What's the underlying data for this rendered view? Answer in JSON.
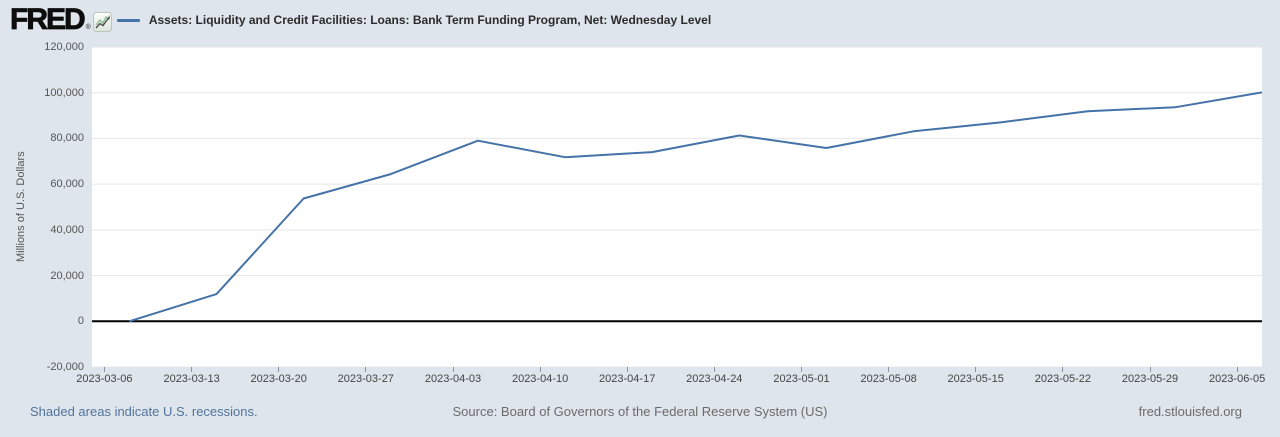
{
  "header": {
    "logo_text": "FRED",
    "registered_mark": "®",
    "series_title": "Assets: Liquidity and Credit Facilities: Loans: Bank Term Funding Program, Net: Wednesday Level"
  },
  "colors": {
    "page_background": "#dfe5ec",
    "plot_background": "#ffffff",
    "line": "#4572a7",
    "zero_line": "#000000",
    "gridline": "#e6e6e6",
    "link": "#51749b",
    "muted_text": "#6b6b6b",
    "axis_text": "#555555"
  },
  "footer": {
    "recession_note": "Shaded areas indicate U.S. recessions.",
    "source": "Source: Board of Governors of the Federal Reserve System (US)",
    "site": "fred.stlouisfed.org"
  },
  "chart_data": {
    "type": "line",
    "title": "Assets: Liquidity and Credit Facilities: Loans: Bank Term Funding Program, Net: Wednesday Level",
    "xlabel": "",
    "ylabel": "Millions of U.S. Dollars",
    "ylim": [
      -20000,
      120000
    ],
    "y_tick_step": 20000,
    "y_tick_labels": [
      "120,000",
      "100,000",
      "80,000",
      "60,000",
      "40,000",
      "20,000",
      "0",
      "-20,000"
    ],
    "x_domain": [
      "2023-03-05",
      "2023-06-07"
    ],
    "x_tick_dates": [
      "2023-03-06",
      "2023-03-13",
      "2023-03-20",
      "2023-03-27",
      "2023-04-03",
      "2023-04-10",
      "2023-04-17",
      "2023-04-24",
      "2023-05-01",
      "2023-05-08",
      "2023-05-15",
      "2023-05-22",
      "2023-05-29",
      "2023-06-05"
    ],
    "grid": true,
    "legend_position": "top",
    "series": [
      {
        "name": "Assets: Liquidity and Credit Facilities: Loans: Bank Term Funding Program, Net: Wednesday Level",
        "x": [
          "2023-03-08",
          "2023-03-15",
          "2023-03-22",
          "2023-03-29",
          "2023-04-05",
          "2023-04-12",
          "2023-04-19",
          "2023-04-26",
          "2023-05-03",
          "2023-05-10",
          "2023-05-17",
          "2023-05-24",
          "2023-05-31",
          "2023-06-07"
        ],
        "values": [
          0,
          11900,
          53700,
          64400,
          79000,
          71800,
          74000,
          81300,
          75800,
          83100,
          87000,
          91900,
          93600,
          100200
        ]
      }
    ]
  }
}
